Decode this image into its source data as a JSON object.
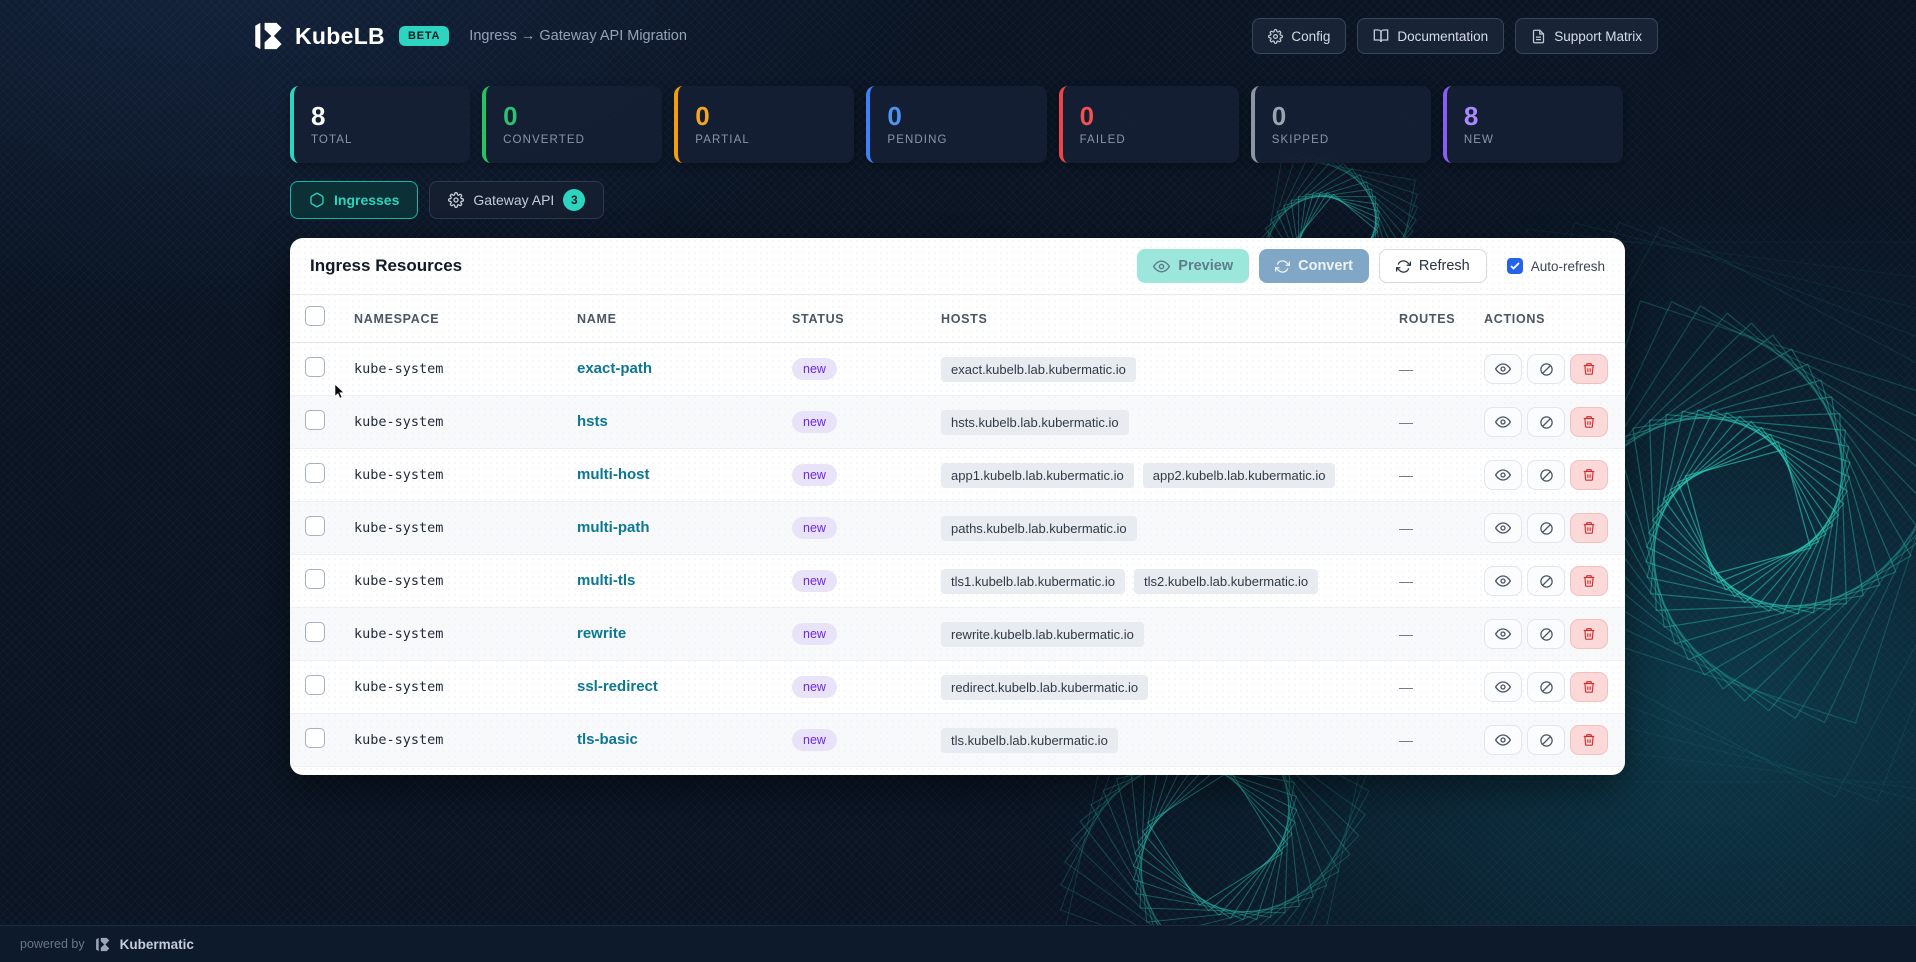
{
  "header": {
    "brand": "KubeLB",
    "beta": "BETA",
    "breadcrumb": "Ingress → Gateway API Migration",
    "config_label": "Config",
    "docs_label": "Documentation",
    "support_label": "Support Matrix"
  },
  "stats": [
    {
      "value": "8",
      "label": "TOTAL",
      "accent": "#2dd4bf",
      "value_color": "#f8fafc"
    },
    {
      "value": "0",
      "label": "CONVERTED",
      "accent": "#22c55e",
      "value_color": "#2fbf71"
    },
    {
      "value": "0",
      "label": "PARTIAL",
      "accent": "#f59e0b",
      "value_color": "#f5a524"
    },
    {
      "value": "0",
      "label": "PENDING",
      "accent": "#3b82f6",
      "value_color": "#4e93f0"
    },
    {
      "value": "0",
      "label": "FAILED",
      "accent": "#ef4444",
      "value_color": "#f05252"
    },
    {
      "value": "0",
      "label": "SKIPPED",
      "accent": "#8b95a5",
      "value_color": "#9aa3b2"
    },
    {
      "value": "8",
      "label": "NEW",
      "accent": "#8b5cf6",
      "value_color": "#a78bfa"
    }
  ],
  "tabs": {
    "ingresses_label": "Ingresses",
    "gateway_label": "Gateway API",
    "gateway_badge": "3"
  },
  "panel": {
    "title": "Ingress Resources",
    "preview_label": "Preview",
    "convert_label": "Convert",
    "refresh_label": "Refresh",
    "auto_refresh_label": "Auto-refresh"
  },
  "table": {
    "headers": {
      "namespace": "NAMESPACE",
      "name": "NAME",
      "status": "STATUS",
      "hosts": "HOSTS",
      "routes": "ROUTES",
      "actions": "ACTIONS"
    },
    "rows": [
      {
        "namespace": "kube-system",
        "name": "exact-path",
        "status": "new",
        "hosts": [
          "exact.kubelb.lab.kubermatic.io"
        ],
        "routes": "—"
      },
      {
        "namespace": "kube-system",
        "name": "hsts",
        "status": "new",
        "hosts": [
          "hsts.kubelb.lab.kubermatic.io"
        ],
        "routes": "—"
      },
      {
        "namespace": "kube-system",
        "name": "multi-host",
        "status": "new",
        "hosts": [
          "app1.kubelb.lab.kubermatic.io",
          "app2.kubelb.lab.kubermatic.io"
        ],
        "routes": "—"
      },
      {
        "namespace": "kube-system",
        "name": "multi-path",
        "status": "new",
        "hosts": [
          "paths.kubelb.lab.kubermatic.io"
        ],
        "routes": "—"
      },
      {
        "namespace": "kube-system",
        "name": "multi-tls",
        "status": "new",
        "hosts": [
          "tls1.kubelb.lab.kubermatic.io",
          "tls2.kubelb.lab.kubermatic.io"
        ],
        "routes": "—"
      },
      {
        "namespace": "kube-system",
        "name": "rewrite",
        "status": "new",
        "hosts": [
          "rewrite.kubelb.lab.kubermatic.io"
        ],
        "routes": "—"
      },
      {
        "namespace": "kube-system",
        "name": "ssl-redirect",
        "status": "new",
        "hosts": [
          "redirect.kubelb.lab.kubermatic.io"
        ],
        "routes": "—"
      },
      {
        "namespace": "kube-system",
        "name": "tls-basic",
        "status": "new",
        "hosts": [
          "tls.kubelb.lab.kubermatic.io"
        ],
        "routes": "—"
      }
    ]
  },
  "footer": {
    "powered_by": "powered by",
    "brand": "Kubermatic"
  },
  "colors": {
    "accent_teal": "#2dd4bf",
    "status_badge_bg": "#e9e3fa",
    "status_badge_text": "#6d28d9"
  }
}
